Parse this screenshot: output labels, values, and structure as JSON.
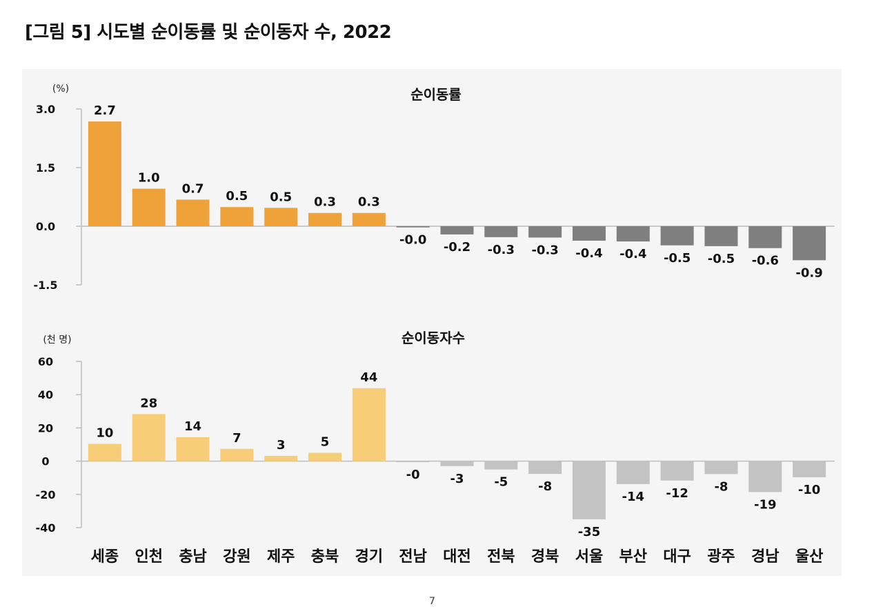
{
  "figure": {
    "title": "[그림 5] 시도별 순이동률 및 순이동자 수, 2022",
    "footer": "7"
  },
  "colors": {
    "positive_rate": "#f0a23a",
    "negative_rate": "#7f7f7f",
    "positive_count": "#f8cd78",
    "negative_count": "#c3c3c3",
    "axis": "#bdbdbd",
    "panel_bg": "#f5f5f5"
  },
  "chart_data": [
    {
      "type": "bar",
      "title": "순이동률",
      "unit": "(%)",
      "categories": [
        "세종",
        "인천",
        "충남",
        "강원",
        "제주",
        "충북",
        "경기",
        "전남",
        "대전",
        "전북",
        "경북",
        "서울",
        "부산",
        "대구",
        "광주",
        "경남",
        "울산"
      ],
      "values": [
        2.7,
        1.0,
        0.7,
        0.5,
        0.5,
        0.3,
        0.3,
        -0.0,
        -0.2,
        -0.3,
        -0.3,
        -0.4,
        -0.4,
        -0.5,
        -0.5,
        -0.6,
        -0.9
      ],
      "bar_values": [
        2.68,
        0.96,
        0.68,
        0.49,
        0.47,
        0.34,
        0.34,
        -0.03,
        -0.21,
        -0.28,
        -0.29,
        -0.37,
        -0.39,
        -0.49,
        -0.51,
        -0.56,
        -0.87
      ],
      "data_labels": [
        "2.7",
        "1.0",
        "0.7",
        "0.5",
        "0.5",
        "0.3",
        "0.3",
        "-0.0",
        "-0.2",
        "-0.3",
        "-0.3",
        "-0.4",
        "-0.4",
        "-0.5",
        "-0.5",
        "-0.6",
        "-0.9"
      ],
      "yticks": [
        "3.0",
        "1.5",
        "0.0",
        "-1.5"
      ],
      "ytick_values": [
        3.0,
        1.5,
        0.0,
        -1.5
      ],
      "ylim": [
        -1.5,
        3.0
      ],
      "grid": false,
      "legend": "none"
    },
    {
      "type": "bar",
      "title": "순이동자수",
      "unit": "(천 명)",
      "categories": [
        "세종",
        "인천",
        "충남",
        "강원",
        "제주",
        "충북",
        "경기",
        "전남",
        "대전",
        "전북",
        "경북",
        "서울",
        "부산",
        "대구",
        "광주",
        "경남",
        "울산"
      ],
      "values": [
        10,
        28,
        14,
        7,
        3,
        5,
        44,
        0,
        -3,
        -5,
        -8,
        -35,
        -14,
        -12,
        -8,
        -19,
        -10
      ],
      "bar_values": [
        10.4,
        28.3,
        14.4,
        7.4,
        3.2,
        5.0,
        43.9,
        -0.4,
        -3.0,
        -5.0,
        -7.7,
        -35.0,
        -13.8,
        -11.7,
        -7.8,
        -18.6,
        -9.7
      ],
      "data_labels": [
        "10",
        "28",
        "14",
        "7",
        "3",
        "5",
        "44",
        "-0",
        "-3",
        "-5",
        "-8",
        "-35",
        "-14",
        "-12",
        "-8",
        "-19",
        "-10"
      ],
      "yticks": [
        "60",
        "40",
        "20",
        "0",
        "-20",
        "-40"
      ],
      "ytick_values": [
        60,
        40,
        20,
        0,
        -20,
        -40
      ],
      "ylim": [
        -40,
        60
      ],
      "grid": false,
      "legend": "none"
    }
  ]
}
